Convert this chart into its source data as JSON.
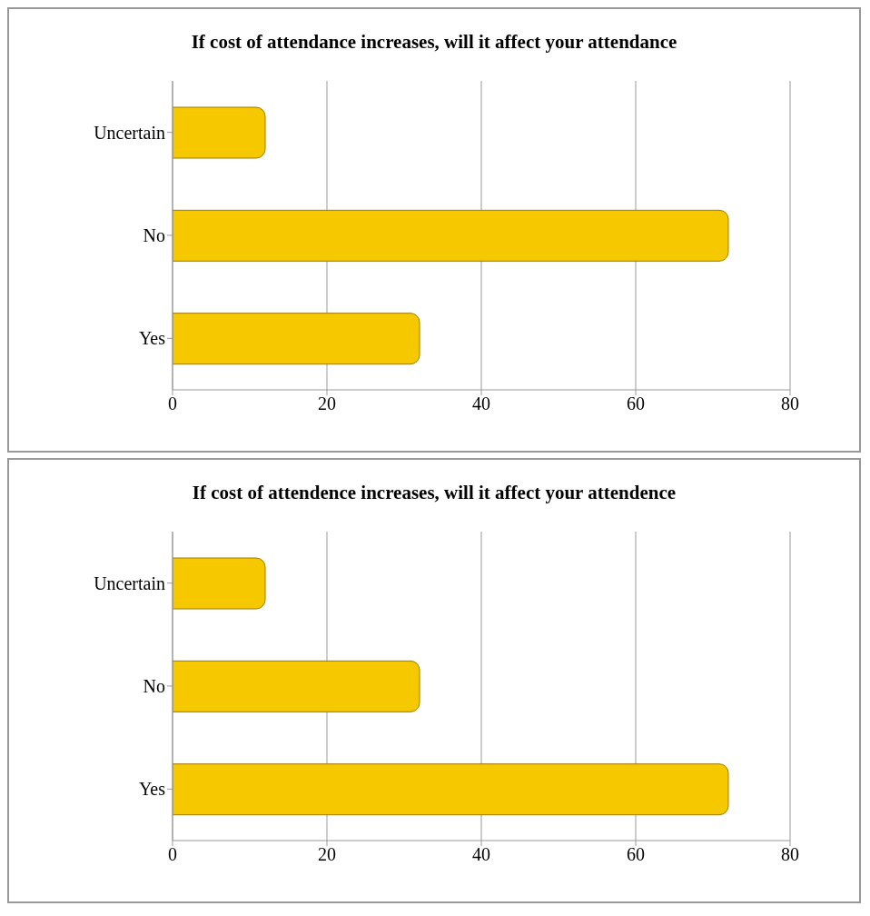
{
  "chart_data": [
    {
      "type": "bar",
      "orientation": "horizontal",
      "title": "If cost of attendance increases, will it affect your attendance",
      "categories": [
        "Uncertain",
        "No",
        "Yes"
      ],
      "values": [
        12,
        72,
        32
      ],
      "color": "#f5c800",
      "xlim": [
        0,
        80
      ],
      "xticks": [
        0,
        20,
        40,
        60,
        80
      ],
      "grid": "x"
    },
    {
      "type": "bar",
      "orientation": "horizontal",
      "title": "If cost of attendence increases, will it affect  your attendence",
      "categories": [
        "Uncertain",
        "No",
        "Yes"
      ],
      "values": [
        12,
        32,
        72
      ],
      "color": "#f5c800",
      "xlim": [
        0,
        80
      ],
      "xticks": [
        0,
        20,
        40,
        60,
        80
      ],
      "grid": "x"
    }
  ]
}
